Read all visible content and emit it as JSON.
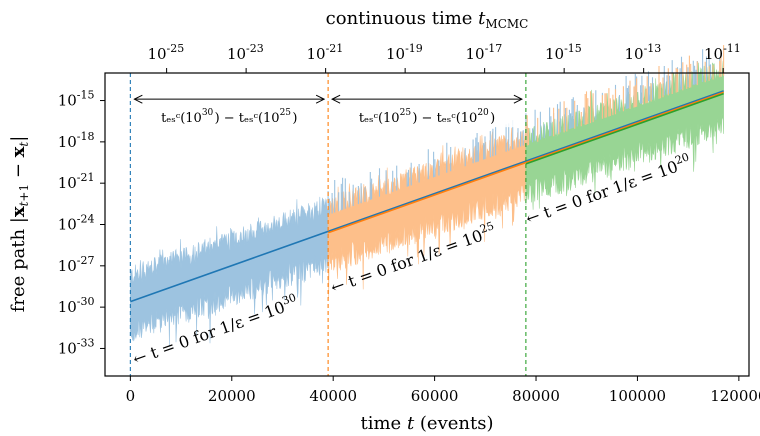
{
  "chart_data": {
    "type": "line",
    "xlabel": "time t (events)",
    "ylabel": "free path |x_{t+1} − x_t|",
    "top_xlabel": "continuous time t_MCMC",
    "xlim": [
      -5000,
      122000
    ],
    "ylim_log10": [
      -35,
      -13
    ],
    "x_ticks": [
      0,
      20000,
      40000,
      60000,
      80000,
      100000,
      120000
    ],
    "x_tick_labels": [
      "0",
      "20000",
      "40000",
      "60000",
      "80000",
      "100000",
      "120000"
    ],
    "y_ticks_log10": [
      -33,
      -30,
      -27,
      -24,
      -21,
      -18,
      -15
    ],
    "y_tick_labels": [
      "10^{-33}",
      "10^{-30}",
      "10^{-27}",
      "10^{-24}",
      "10^{-21}",
      "10^{-18}",
      "10^{-15}"
    ],
    "top_ticks_log10": [
      -25,
      -23,
      -21,
      -19,
      -17,
      -15,
      -13,
      -11
    ],
    "top_tick_labels": [
      "10^{-25}",
      "10^{-23}",
      "10^{-21}",
      "10^{-19}",
      "10^{-17}",
      "10^{-15}",
      "10^{-13}",
      "10^{-11}"
    ],
    "top_axis_range_log10": [
      -26.55,
      -10.35
    ],
    "grid": false,
    "series": [
      {
        "color_fill": "#9dc3e0",
        "color_line": "#1f77b4",
        "x_range": [
          0,
          117000
        ],
        "mean_log10_start": -29.6,
        "mean_log10_end": -14.3,
        "spread_log10": 2.0,
        "fill_x_range": [
          0,
          39000
        ]
      },
      {
        "color_fill": "#fdbf8a",
        "color_line": "#ff7f0e",
        "x_range": [
          39000,
          117000
        ],
        "mean_log10_start": -24.6,
        "mean_log10_end": -14.4,
        "spread_log10": 2.0,
        "fill_x_range": [
          39000,
          78000
        ]
      },
      {
        "color_fill": "#98d594",
        "color_line": "#2ca02c",
        "x_range": [
          78000,
          117000
        ],
        "mean_log10_start": -19.6,
        "mean_log10_end": -14.5,
        "spread_log10": 2.0,
        "fill_x_range": [
          78000,
          117000
        ]
      }
    ],
    "vlines": [
      {
        "x": 0,
        "color": "#1f77b4"
      },
      {
        "x": 39000,
        "color": "#ff7f0e"
      },
      {
        "x": 78000,
        "color": "#2ca02c"
      }
    ],
    "arrows": [
      {
        "x_from": 0,
        "x_to": 39000,
        "y_log10": -14.9,
        "label": "t_esc(10^{30}) − t_esc(10^{25})"
      },
      {
        "x_from": 39000,
        "x_to": 78000,
        "y_log10": -14.9,
        "label": "t_esc(10^{25}) − t_esc(10^{20})"
      }
    ],
    "diagonal_annotations": [
      {
        "text": "← t = 0 for 1/ε = 10^{30}",
        "x": 1000,
        "y_log10": -34.2
      },
      {
        "text": "← t = 0 for 1/ε = 10^{25}",
        "x": 40000,
        "y_log10": -29.0
      },
      {
        "text": "← t = 0 for 1/ε = 10^{20}",
        "x": 78500,
        "y_log10": -24.0
      }
    ]
  }
}
